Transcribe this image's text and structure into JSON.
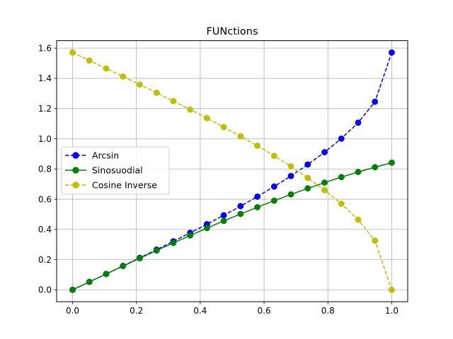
{
  "chart_data": {
    "type": "line",
    "title": "FUNctions",
    "xlabel": "",
    "ylabel": "",
    "xlim": [
      -0.05,
      1.05
    ],
    "ylim": [
      -0.0785,
      1.6493
    ],
    "xticks": [
      0.0,
      0.2,
      0.4,
      0.6,
      0.8,
      1.0
    ],
    "xtick_labels": [
      "0.0",
      "0.2",
      "0.4",
      "0.6",
      "0.8",
      "1.0"
    ],
    "yticks": [
      0.0,
      0.2,
      0.4,
      0.6,
      0.8,
      1.0,
      1.2,
      1.4,
      1.6
    ],
    "ytick_labels": [
      "0.0",
      "0.2",
      "0.4",
      "0.6",
      "0.8",
      "1.0",
      "1.2",
      "1.4",
      "1.6"
    ],
    "grid": true,
    "legend_position": "center-left",
    "x": [
      0.0,
      0.0526,
      0.1053,
      0.1579,
      0.2105,
      0.2632,
      0.3158,
      0.3684,
      0.4211,
      0.4737,
      0.5263,
      0.5789,
      0.6316,
      0.6842,
      0.7368,
      0.7895,
      0.8421,
      0.8947,
      0.9474,
      1.0
    ],
    "series": [
      {
        "name": "Arcsin",
        "color": "#0000ff",
        "linestyle": "dashed",
        "marker": "circle",
        "values": [
          0.0,
          0.0527,
          0.1055,
          0.1586,
          0.2121,
          0.2663,
          0.3214,
          0.3773,
          0.4346,
          0.4937,
          0.5541,
          0.617,
          0.6839,
          0.7535,
          0.8296,
          0.9111,
          1.001,
          1.1063,
          1.2451,
          1.5708
        ]
      },
      {
        "name": "Sinosuodial",
        "color": "#008000",
        "linestyle": "solid",
        "marker": "circle",
        "values": [
          0.0,
          0.0526,
          0.1051,
          0.1572,
          0.209,
          0.2602,
          0.3106,
          0.3601,
          0.4088,
          0.4563,
          0.5024,
          0.547,
          0.5902,
          0.6317,
          0.6717,
          0.71,
          0.7463,
          0.7801,
          0.8118,
          0.8415
        ]
      },
      {
        "name": "Cosine Inverse",
        "color": "#bfbf00",
        "linestyle": "dashed",
        "marker": "circle",
        "values": [
          1.5708,
          1.5181,
          1.4653,
          1.4122,
          1.3587,
          1.3045,
          1.2494,
          1.1935,
          1.1362,
          1.0771,
          1.0167,
          0.9538,
          0.8869,
          0.8173,
          0.7412,
          0.6597,
          0.5698,
          0.4645,
          0.3257,
          0.0
        ]
      }
    ]
  }
}
